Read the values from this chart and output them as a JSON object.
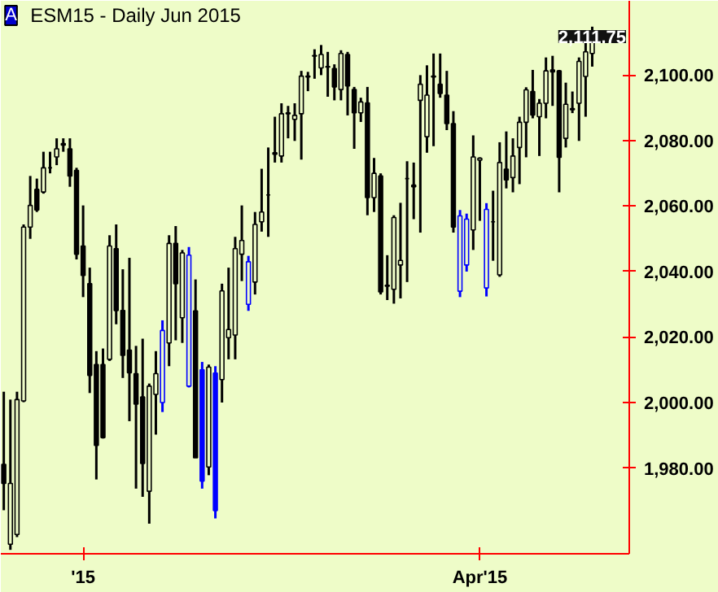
{
  "chart_data": {
    "type": "candlestick",
    "title": "ESM15 - Daily  Jun 2015",
    "annotations": [
      "A",
      {
        "text": "2,111.75",
        "y": 2111.75
      }
    ],
    "categories": [
      null,
      null,
      null,
      null,
      null,
      null,
      null,
      null,
      null,
      null,
      null,
      null,
      "'15",
      null,
      null,
      null,
      null,
      null,
      null,
      null,
      null,
      null,
      null,
      null,
      null,
      null,
      null,
      null,
      null,
      null,
      null,
      null,
      null,
      null,
      null,
      null,
      null,
      null,
      null,
      null,
      null,
      null,
      null,
      null,
      null,
      null,
      null,
      null,
      null,
      null,
      null,
      null,
      null,
      null,
      null,
      null,
      null,
      null,
      null,
      null,
      null,
      null,
      null,
      null,
      null,
      null,
      null,
      null,
      null,
      null,
      null,
      null,
      "Apr'15",
      null,
      null,
      null,
      null,
      null,
      null,
      null,
      null,
      null,
      null,
      null,
      null,
      null,
      null,
      null,
      null,
      null
    ],
    "ohlc": [
      [
        1981.1,
        2003.3,
        1967.1,
        1975.3
      ],
      [
        1956.7,
        2000.9,
        1955.0,
        1975.3
      ],
      [
        1959.7,
        2003.3,
        1958.9,
        2000.9
      ],
      [
        2000.5,
        2054.4,
        2000.1,
        2053.6
      ],
      [
        2053.6,
        2069.2,
        2050.0,
        2060.2
      ],
      [
        2065.1,
        2068.4,
        2058.2,
        2058.8
      ],
      [
        2064.3,
        2076.6,
        2063.8,
        2071.7
      ],
      [
        2071.7,
        2076.6,
        2070.0,
        2071.7
      ],
      [
        2075.0,
        2080.7,
        2072.5,
        2077.5
      ],
      [
        2079.1,
        2080.7,
        2076.6,
        2078.6
      ],
      [
        2077.5,
        2080.7,
        2065.9,
        2069.2
      ],
      [
        2070.9,
        2071.7,
        2043.7,
        2045.3
      ],
      [
        2047.8,
        2060.2,
        2032.2,
        2038.8
      ],
      [
        2036.3,
        2041.2,
        2002.9,
        2008.3
      ],
      [
        2011.6,
        2015.7,
        1976.5,
        1986.9
      ],
      [
        2011.6,
        2016.5,
        1989.0,
        1989.3
      ],
      [
        2013.2,
        2051.1,
        2012.7,
        2047.8
      ],
      [
        2047.0,
        2054.4,
        2023.9,
        2028.1
      ],
      [
        2028.1,
        2040.7,
        2007.5,
        2014.4
      ],
      [
        2016.0,
        2044.2,
        1994.3,
        2009.1
      ],
      [
        2008.8,
        2017.3,
        1973.7,
        1999.5
      ],
      [
        2001.7,
        2019.5,
        1971.2,
        1981.4
      ],
      [
        1972.9,
        2005.8,
        1963.0,
        2005.0
      ],
      [
        2002.5,
        2015.7,
        1990.2,
        2008.8
      ],
      [
        2000.0,
        2025.1,
        1997.1,
        2022.0
      ],
      [
        2018.2,
        2051.1,
        2011.1,
        2048.6
      ],
      [
        2048.6,
        2053.9,
        2019.0,
        2036.3
      ],
      [
        2025.9,
        2046.6,
        2018.2,
        2045.7
      ],
      [
        2005.0,
        2047.5,
        2004.6,
        2045.0
      ],
      [
        2028.0,
        2037.6,
        1983.1,
        1983.1
      ],
      [
        2010.0,
        2012.4,
        1973.7,
        1976.0
      ],
      [
        1980.3,
        2011.6,
        1977.8,
        2010.8
      ],
      [
        2009.0,
        2011.1,
        1964.6,
        1967.0
      ],
      [
        2007.0,
        2036.3,
        2000.0,
        2034.1
      ],
      [
        2019.8,
        2041.2,
        2013.2,
        2022.3
      ],
      [
        2020.6,
        2050.6,
        2013.2,
        2047.0
      ],
      [
        2045.3,
        2060.2,
        2037.1,
        2049.5
      ],
      [
        2030.0,
        2044.8,
        2028.0,
        2043.0
      ],
      [
        2036.8,
        2058.2,
        2033.0,
        2054.4
      ],
      [
        2055.2,
        2071.4,
        2052.2,
        2058.2
      ],
      [
        2063.4,
        2077.9,
        2050.6,
        2063.4
      ],
      [
        2076.3,
        2087.3,
        2073.3,
        2075.8
      ],
      [
        2075.3,
        2091.4,
        2073.3,
        2088.2
      ],
      [
        2088.2,
        2090.6,
        2080.7,
        2088.5
      ],
      [
        2086.5,
        2091.4,
        2079.9,
        2087.7
      ],
      [
        2088.2,
        2101.3,
        2074.2,
        2099.7
      ],
      [
        2099.7,
        2101.0,
        2095.1,
        2099.4
      ],
      [
        2106.0,
        2107.9,
        2098.9,
        2105.8
      ],
      [
        2102.2,
        2109.2,
        2100.0,
        2106.3
      ],
      [
        2102.6,
        2107.1,
        2093.4,
        2102.5
      ],
      [
        2102.0,
        2103.3,
        2092.3,
        2096.4
      ],
      [
        2095.6,
        2107.6,
        2092.3,
        2106.6
      ],
      [
        2106.3,
        2107.1,
        2087.7,
        2096.7
      ],
      [
        2095.6,
        2096.4,
        2077.5,
        2088.5
      ],
      [
        2088.5,
        2093.1,
        2085.7,
        2091.8
      ],
      [
        2091.5,
        2096.4,
        2057.2,
        2062.6
      ],
      [
        2062.6,
        2074.7,
        2058.2,
        2070.0
      ],
      [
        2069.2,
        2070.0,
        2033.0,
        2033.8
      ],
      [
        2035.5,
        2045.0,
        2031.3,
        2035.8
      ],
      [
        2034.6,
        2057.2,
        2030.2,
        2056.5
      ],
      [
        2042.0,
        2061.0,
        2031.8,
        2043.4
      ],
      [
        2068.4,
        2073.7,
        2036.8,
        2068.4
      ],
      [
        2066.4,
        2073.3,
        2056.0,
        2065.9
      ],
      [
        2092.3,
        2100.0,
        2051.9,
        2097.2
      ],
      [
        2081.2,
        2103.0,
        2076.3,
        2093.9
      ],
      [
        2099.4,
        2106.6,
        2078.3,
        2099.7
      ],
      [
        2097.2,
        2106.6,
        2093.1,
        2094.4
      ],
      [
        2093.9,
        2101.3,
        2083.2,
        2085.2
      ],
      [
        2085.2,
        2089.0,
        2051.9,
        2053.6
      ],
      [
        2034.0,
        2058.8,
        2032.2,
        2057.0
      ],
      [
        2042.0,
        2057.7,
        2040.0,
        2056.0
      ],
      [
        2052.7,
        2081.6,
        2046.6,
        2075.0
      ],
      [
        2074.0,
        2074.9,
        2055.5,
        2074.6
      ],
      [
        2035.0,
        2060.9,
        2032.4,
        2059.0
      ],
      [
        2055.2,
        2064.7,
        2043.3,
        2055.2
      ],
      [
        2039.0,
        2079.5,
        2038.4,
        2073.3
      ],
      [
        2071.3,
        2082.8,
        2065.4,
        2068.0
      ],
      [
        2068.7,
        2080.7,
        2064.2,
        2075.3
      ],
      [
        2077.9,
        2087.3,
        2066.7,
        2085.6
      ],
      [
        2085.6,
        2096.3,
        2074.9,
        2095.5
      ],
      [
        2095.0,
        2101.6,
        2086.8,
        2087.8
      ],
      [
        2087.3,
        2092.7,
        2075.3,
        2091.4
      ],
      [
        2091.4,
        2105.4,
        2086.8,
        2101.3
      ],
      [
        2101.6,
        2105.9,
        2090.6,
        2101.0
      ],
      [
        2101.3,
        2101.6,
        2064.2,
        2074.9
      ],
      [
        2080.7,
        2097.7,
        2077.9,
        2091.1
      ],
      [
        2089.8,
        2095.0,
        2088.4,
        2089.4
      ],
      [
        2091.4,
        2105.4,
        2079.9,
        2104.2
      ],
      [
        2099.6,
        2110.3,
        2087.3,
        2107.1
      ],
      [
        2106.6,
        2114.8,
        2102.6,
        2111.75
      ]
    ],
    "colors": [
      "#000000",
      "#000000",
      "#000000",
      "#000000",
      "#000000",
      "#000000",
      "#000000",
      "#000000",
      "#000000",
      "#000000",
      "#000000",
      "#000000",
      "#000000",
      "#000000",
      "#000000",
      "#000000",
      "#000000",
      "#000000",
      "#000000",
      "#000000",
      "#000000",
      "#000000",
      "#000000",
      "#000000",
      "#0000ff",
      "#000000",
      "#000000",
      "#000000",
      "#0000ff",
      "#000000",
      "#0000ff",
      "#000000",
      "#0000ff",
      "#000000",
      "#000000",
      "#000000",
      "#000000",
      "#0000ff",
      "#000000",
      "#000000",
      "#000000",
      "#000000",
      "#000000",
      "#000000",
      "#000000",
      "#000000",
      "#000000",
      "#000000",
      "#000000",
      "#000000",
      "#000000",
      "#000000",
      "#000000",
      "#000000",
      "#000000",
      "#000000",
      "#000000",
      "#000000",
      "#000000",
      "#000000",
      "#000000",
      "#000000",
      "#000000",
      "#000000",
      "#000000",
      "#000000",
      "#000000",
      "#000000",
      "#000000",
      "#0000ff",
      "#0000ff",
      "#000000",
      "#000000",
      "#0000ff",
      "#000000",
      "#000000",
      "#000000",
      "#000000",
      "#000000",
      "#000000",
      "#000000",
      "#000000",
      "#000000",
      "#000000",
      "#000000",
      "#000000",
      "#000000",
      "#000000",
      "#000000",
      "#000000"
    ],
    "ylim": [
      1953.8,
      2122.7
    ],
    "yticks": [
      {
        "value": 1980,
        "label": "1,980.00"
      },
      {
        "value": 2000,
        "label": "2,000.00"
      },
      {
        "value": 2020,
        "label": "2,020.00"
      },
      {
        "value": 2040,
        "label": "2,040.00"
      },
      {
        "value": 2060,
        "label": "2,060.00"
      },
      {
        "value": 2080,
        "label": "2,080.00"
      },
      {
        "value": 2100,
        "label": "2,100.00"
      }
    ]
  }
}
